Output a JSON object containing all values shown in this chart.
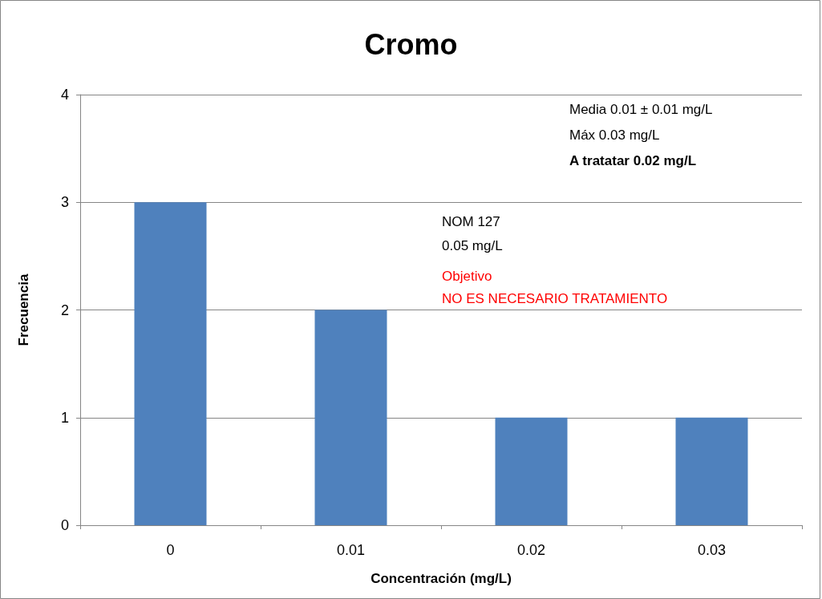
{
  "chart_data": {
    "type": "bar",
    "title": "Cromo",
    "xlabel": "Concentración (mg/L)",
    "ylabel": "Frecuencia",
    "categories": [
      "0",
      "0.01",
      "0.02",
      "0.03"
    ],
    "values": [
      3,
      2,
      1,
      1
    ],
    "color": "#4f81bd",
    "ylim": [
      0,
      4
    ],
    "yticks": [
      0,
      1,
      2,
      3,
      4
    ],
    "grid": "y",
    "annotations": [
      "Media 0.01 ± 0.01 mg/L",
      "Máx 0.03 mg/L",
      "A tratatar 0.02 mg/L",
      "NOM 127",
      "0.05 mg/L",
      "Objetivo",
      "NO ES NECESARIO TRATAMIENTO"
    ]
  }
}
